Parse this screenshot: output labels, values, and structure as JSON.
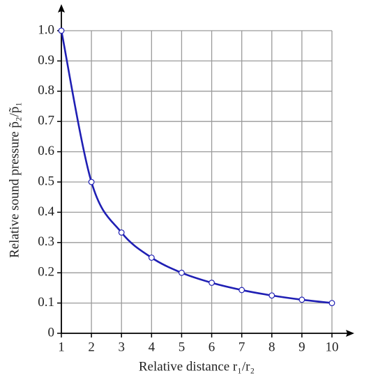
{
  "chart_data": {
    "type": "line",
    "x_label": "Relative distance r₁/r₂",
    "y_label": "Relative sound pressure p̃₂/p̃₁",
    "x": [
      1,
      2,
      3,
      4,
      5,
      6,
      7,
      8,
      9,
      10
    ],
    "series": [
      {
        "name": "p̃₂/p̃₁",
        "color": "#1f1fb4",
        "values": [
          1.0,
          0.5,
          0.333,
          0.25,
          0.2,
          0.167,
          0.143,
          0.125,
          0.111,
          0.1
        ]
      }
    ],
    "xlim": [
      1,
      10
    ],
    "ylim": [
      0,
      1
    ],
    "xticks": [
      1,
      2,
      3,
      4,
      5,
      6,
      7,
      8,
      9,
      10
    ],
    "yticks": [
      0,
      0.1,
      0.2,
      0.3,
      0.4,
      0.5,
      0.6,
      0.7,
      0.8,
      0.9,
      {
        "value": 1,
        "label": "1.0"
      }
    ],
    "grid": true
  }
}
